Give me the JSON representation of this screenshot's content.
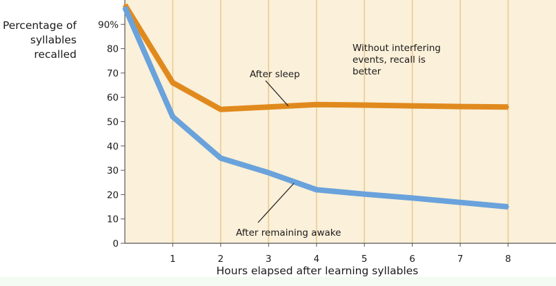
{
  "colors": {
    "plot_background": "#fbf0d9",
    "grid": "#e9c98e",
    "axis": "#555555",
    "after_sleep": "#e08a1e",
    "after_awake": "#6aa2dc",
    "text": "#1a1a1a"
  },
  "chart_data": {
    "type": "line",
    "title": "",
    "xlabel": "Hours elapsed after learning syllables",
    "ylabel": [
      "Percentage of",
      "syllables",
      "recalled"
    ],
    "xlim": [
      0,
      9
    ],
    "ylim": [
      0,
      100
    ],
    "x_ticks": [
      1,
      2,
      3,
      4,
      5,
      6,
      7,
      8
    ],
    "x_tick_labels": [
      "1",
      "2",
      "3",
      "4",
      "5",
      "6",
      "7",
      "8"
    ],
    "y_ticks": [
      0,
      10,
      20,
      30,
      40,
      50,
      60,
      70,
      80,
      90
    ],
    "y_tick_labels": [
      "0",
      "10",
      "20",
      "30",
      "40",
      "50",
      "60",
      "70",
      "80",
      "90%"
    ],
    "grid": "vertical",
    "series": [
      {
        "key": "sleep",
        "name": "After sleep",
        "color": "#e08a1e",
        "x": [
          0,
          1,
          2,
          3,
          4,
          5,
          6,
          7,
          8
        ],
        "values": [
          98,
          66,
          55,
          56,
          57,
          56.8,
          56.5,
          56.2,
          56
        ]
      },
      {
        "key": "awake",
        "name": "After remaining awake",
        "color": "#6aa2dc",
        "x": [
          0,
          1,
          2,
          3,
          4,
          5,
          6,
          7,
          8
        ],
        "values": [
          97,
          52,
          35,
          29,
          22,
          20.2,
          18.6,
          16.8,
          15
        ]
      }
    ],
    "annotations": [
      {
        "key": "note",
        "lines": [
          "Without interfering",
          "events, recall is",
          "better"
        ]
      }
    ]
  }
}
